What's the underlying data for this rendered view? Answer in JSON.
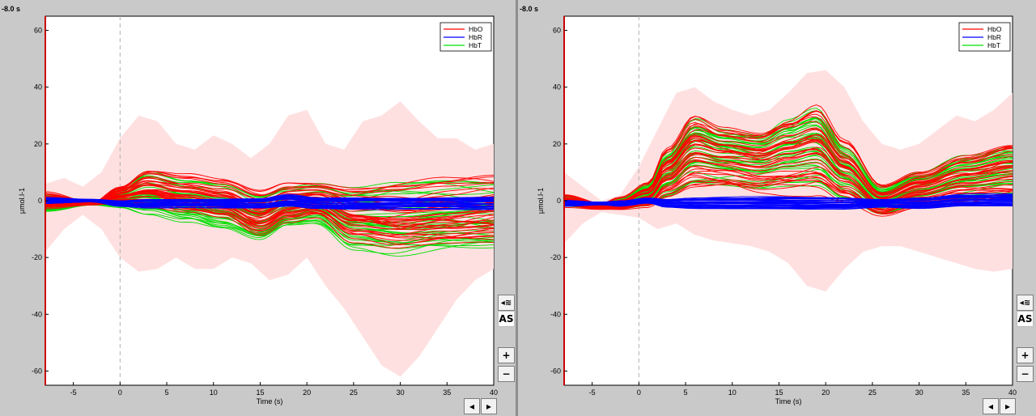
{
  "panels": [
    {
      "time_label": "-8.0 s",
      "as_label": "AS",
      "zoom_in_label": "+",
      "zoom_out_label": "−",
      "prev_label": "◂",
      "next_label": "▸",
      "wave_icon": "wave-icon"
    },
    {
      "time_label": "-8.0 s",
      "as_label": "AS",
      "zoom_in_label": "+",
      "zoom_out_label": "−",
      "prev_label": "◂",
      "next_label": "▸",
      "wave_icon": "wave-icon"
    }
  ],
  "colors": {
    "hbo": "#ff0000",
    "hbr": "#0000ff",
    "hbt": "#00e000",
    "band": "#ffe0e0"
  },
  "chart_data": [
    {
      "type": "line",
      "xlabel": "Time (s)",
      "ylabel": "μmol.l-1",
      "xlim": [
        -8,
        40
      ],
      "ylim": [
        -65,
        65
      ],
      "xticks": [
        -5,
        0,
        5,
        10,
        15,
        20,
        25,
        30,
        35,
        40
      ],
      "yticks": [
        -60,
        -40,
        -20,
        0,
        20,
        40,
        60
      ],
      "legend": {
        "position": "top-right",
        "entries": [
          "HbO",
          "HbR",
          "HbT"
        ]
      },
      "stimulus_onset": 0,
      "band": {
        "x": [
          -8,
          -6,
          -4,
          -2,
          0,
          2,
          4,
          6,
          8,
          10,
          12,
          14,
          16,
          18,
          20,
          22,
          24,
          26,
          28,
          30,
          32,
          34,
          36,
          38,
          40
        ],
        "upper": [
          6,
          8,
          5,
          10,
          22,
          30,
          28,
          20,
          18,
          23,
          20,
          15,
          20,
          30,
          32,
          20,
          18,
          28,
          30,
          35,
          28,
          22,
          22,
          18,
          20
        ],
        "lower": [
          -18,
          -10,
          -5,
          -10,
          -20,
          -25,
          -24,
          -20,
          -24,
          -24,
          -20,
          -22,
          -28,
          -26,
          -20,
          -30,
          -38,
          -48,
          -58,
          -62,
          -55,
          -45,
          -35,
          -28,
          -24
        ]
      },
      "series": [
        {
          "name": "HbO",
          "x": [
            -8,
            -3,
            0,
            3,
            7,
            11,
            15,
            18,
            21,
            25,
            30,
            35,
            40
          ],
          "values_mean": [
            0,
            -1,
            2,
            4,
            2,
            0,
            -5,
            -1,
            0,
            -5,
            -6,
            -5,
            -4
          ],
          "values_spread": [
            3,
            0.5,
            3,
            7,
            7,
            7,
            8,
            7,
            6,
            10,
            12,
            12,
            12
          ]
        },
        {
          "name": "HbR",
          "x": [
            -8,
            -3,
            0,
            3,
            7,
            11,
            15,
            18,
            21,
            25,
            30,
            35,
            40
          ],
          "values_mean": [
            0,
            0,
            -1,
            -1,
            -1,
            -1,
            -1,
            0,
            -1,
            -1,
            -1,
            -1,
            -1
          ],
          "values_spread": [
            1,
            0.5,
            1,
            1.5,
            1.5,
            1.5,
            1.5,
            2,
            2,
            2,
            2,
            2,
            2
          ]
        },
        {
          "name": "HbT",
          "x": [
            -8,
            -3,
            0,
            3,
            7,
            11,
            15,
            18,
            21,
            25,
            30,
            35,
            40
          ],
          "values_mean": [
            -1,
            -1,
            1,
            3,
            0,
            -2,
            -6,
            -2,
            -1,
            -6,
            -6,
            -5,
            -5
          ],
          "values_spread": [
            3,
            0.5,
            3,
            7,
            7,
            8,
            8,
            7,
            7,
            10,
            12,
            12,
            12
          ]
        }
      ]
    },
    {
      "type": "line",
      "xlabel": "Time (s)",
      "ylabel": "μmol.l-1",
      "xlim": [
        -8,
        40
      ],
      "ylim": [
        -65,
        65
      ],
      "xticks": [
        -5,
        0,
        5,
        10,
        15,
        20,
        25,
        30,
        35,
        40
      ],
      "yticks": [
        -60,
        -40,
        -20,
        0,
        20,
        40,
        60
      ],
      "legend": {
        "position": "top-right",
        "entries": [
          "HbO",
          "HbR",
          "HbT"
        ]
      },
      "stimulus_onset": 0,
      "band": {
        "x": [
          -8,
          -6,
          -4,
          -2,
          0,
          2,
          4,
          6,
          8,
          10,
          12,
          14,
          16,
          18,
          20,
          22,
          24,
          26,
          28,
          30,
          32,
          34,
          36,
          38,
          40
        ],
        "upper": [
          10,
          5,
          0,
          2,
          12,
          25,
          38,
          40,
          35,
          32,
          30,
          32,
          38,
          45,
          46,
          40,
          28,
          20,
          18,
          20,
          25,
          30,
          28,
          32,
          38
        ],
        "lower": [
          -15,
          -8,
          -4,
          -5,
          -6,
          -10,
          -8,
          -12,
          -14,
          -15,
          -16,
          -18,
          -22,
          -30,
          -32,
          -24,
          -18,
          -16,
          -16,
          -18,
          -20,
          -22,
          -24,
          -25,
          -24
        ]
      },
      "series": [
        {
          "name": "HbO",
          "x": [
            -8,
            -4,
            -2,
            1,
            3,
            6,
            9,
            13,
            16,
            19,
            22,
            26,
            30,
            35,
            40
          ],
          "values_mean": [
            0,
            -2,
            -1,
            2,
            10,
            18,
            16,
            14,
            16,
            18,
            10,
            0,
            4,
            8,
            10
          ],
          "values_spread": [
            2,
            1,
            2,
            4,
            8,
            12,
            10,
            10,
            12,
            14,
            10,
            5,
            6,
            8,
            10
          ]
        },
        {
          "name": "HbR",
          "x": [
            -8,
            -4,
            -2,
            1,
            3,
            6,
            9,
            13,
            16,
            19,
            22,
            26,
            30,
            35,
            40
          ],
          "values_mean": [
            -1,
            -1,
            -1,
            0,
            -1,
            -1,
            -1,
            -1,
            -1,
            -1,
            -1,
            -1,
            -1,
            0,
            0
          ],
          "values_spread": [
            1,
            0.5,
            1,
            1,
            1.5,
            2,
            2,
            2,
            2,
            2,
            2,
            1.5,
            2,
            2,
            2
          ]
        },
        {
          "name": "HbT",
          "x": [
            -8,
            -4,
            -2,
            1,
            3,
            6,
            9,
            13,
            16,
            19,
            22,
            26,
            30,
            35,
            40
          ],
          "values_mean": [
            0,
            -2,
            -1,
            2,
            9,
            17,
            15,
            14,
            17,
            19,
            10,
            0,
            4,
            8,
            10
          ],
          "values_spread": [
            2,
            1,
            2,
            4,
            8,
            12,
            10,
            10,
            12,
            14,
            10,
            5,
            6,
            8,
            10
          ]
        }
      ]
    }
  ]
}
